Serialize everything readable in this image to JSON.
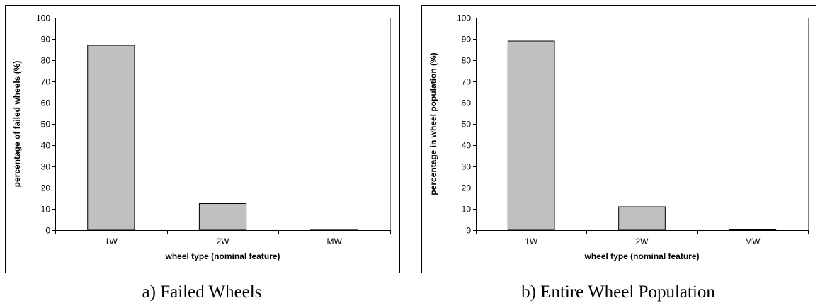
{
  "chart_data": [
    {
      "type": "bar",
      "categories": [
        "1W",
        "2W",
        "MW"
      ],
      "values": [
        87,
        12.5,
        0.5
      ],
      "xlabel": "wheel type (nominal feature)",
      "ylabel": "percentage of failed wheels (%)",
      "ylim": [
        0,
        100
      ],
      "yticks": [
        0,
        10,
        20,
        30,
        40,
        50,
        60,
        70,
        80,
        90,
        100
      ],
      "caption": "a) Failed Wheels",
      "bar_color": "#c0c0c0",
      "grid": false
    },
    {
      "type": "bar",
      "categories": [
        "1W",
        "2W",
        "MW"
      ],
      "values": [
        89,
        11,
        0.3
      ],
      "xlabel": "wheel type (nominal feature)",
      "ylabel": "percentage in wheel population (%)",
      "ylim": [
        0,
        100
      ],
      "yticks": [
        0,
        10,
        20,
        30,
        40,
        50,
        60,
        70,
        80,
        90,
        100
      ],
      "caption": "b) Entire Wheel Population",
      "bar_color": "#c0c0c0",
      "grid": false
    }
  ]
}
